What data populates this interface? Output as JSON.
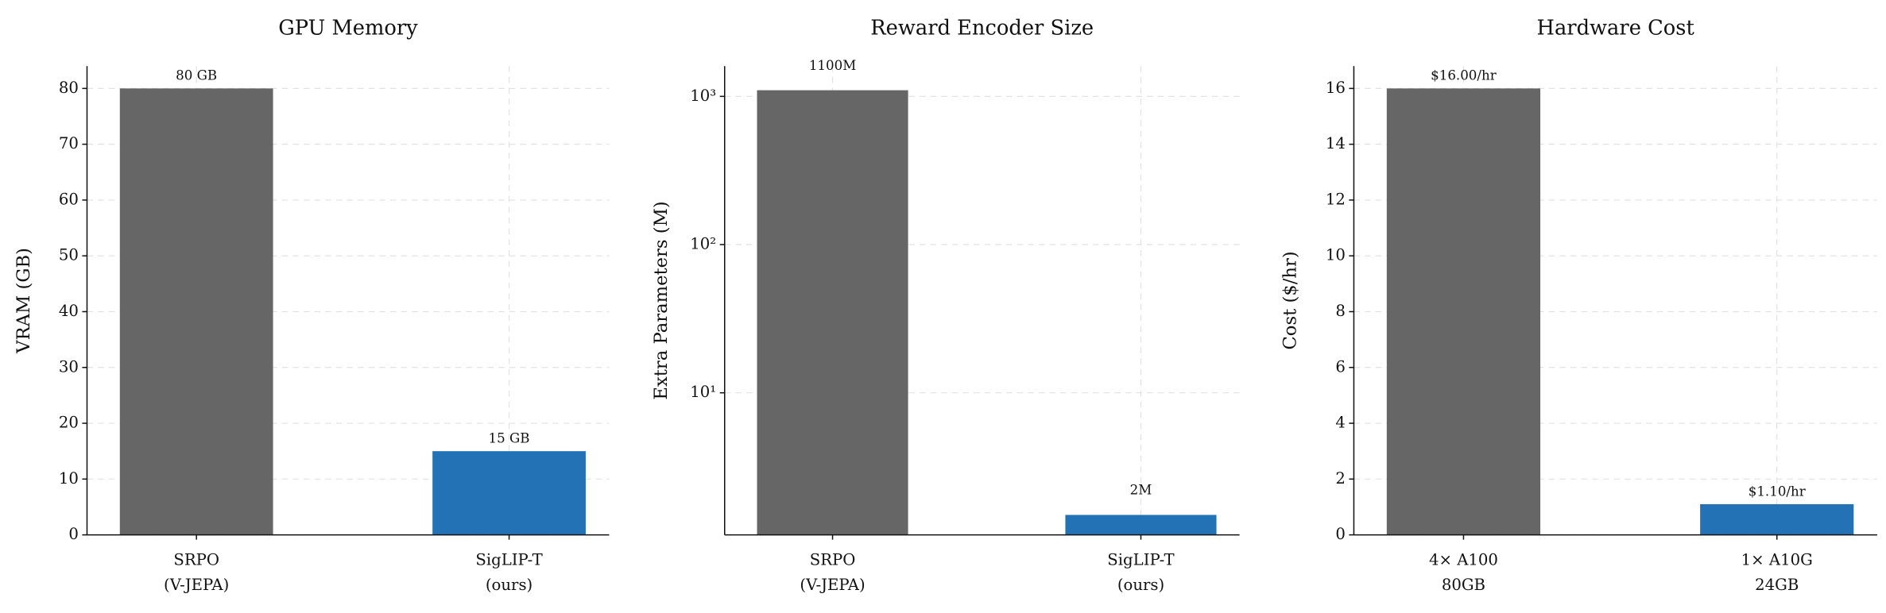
{
  "chart_data": [
    {
      "type": "bar",
      "title": "GPU Memory",
      "ylabel": "VRAM (GB)",
      "categories": [
        "SRPO\n(V-JEPA)",
        "SigLIP-T\n(ours)"
      ],
      "values": [
        80,
        15
      ],
      "value_labels": [
        "80 GB",
        "15 GB"
      ],
      "colors": [
        "#636363",
        "#1f6fb4"
      ],
      "ylim": [
        0,
        84
      ],
      "yticks": [
        0,
        10,
        20,
        30,
        40,
        50,
        60,
        70,
        80
      ],
      "grid": true,
      "log": false
    },
    {
      "type": "bar",
      "title": "Reward Encoder Size",
      "ylabel": "Extra Parameters (M)",
      "categories": [
        "SRPO\n(V-JEPA)",
        "SigLIP-T\n(ours)"
      ],
      "values": [
        1100,
        1.5
      ],
      "value_labels": [
        "1100M",
        "2M"
      ],
      "colors": [
        "#636363",
        "#1f6fb4"
      ],
      "ylim": [
        1.1,
        1600
      ],
      "yticks": [
        {
          "value": 10,
          "label": "10¹"
        },
        {
          "value": 100,
          "label": "10²"
        },
        {
          "value": 1000,
          "label": "10³"
        }
      ],
      "grid": true,
      "log": true
    },
    {
      "type": "bar",
      "title": "Hardware Cost",
      "ylabel": "Cost ($/hr)",
      "categories": [
        "4× A100\n80GB",
        "1× A10G\n24GB"
      ],
      "values": [
        16,
        1.1
      ],
      "value_labels": [
        "$16.00/hr",
        "$1.10/hr"
      ],
      "colors": [
        "#636363",
        "#1f6fb4"
      ],
      "ylim": [
        0,
        16.8
      ],
      "yticks": [
        0,
        2,
        4,
        6,
        8,
        10,
        12,
        14,
        16
      ],
      "grid": true,
      "log": false
    }
  ]
}
